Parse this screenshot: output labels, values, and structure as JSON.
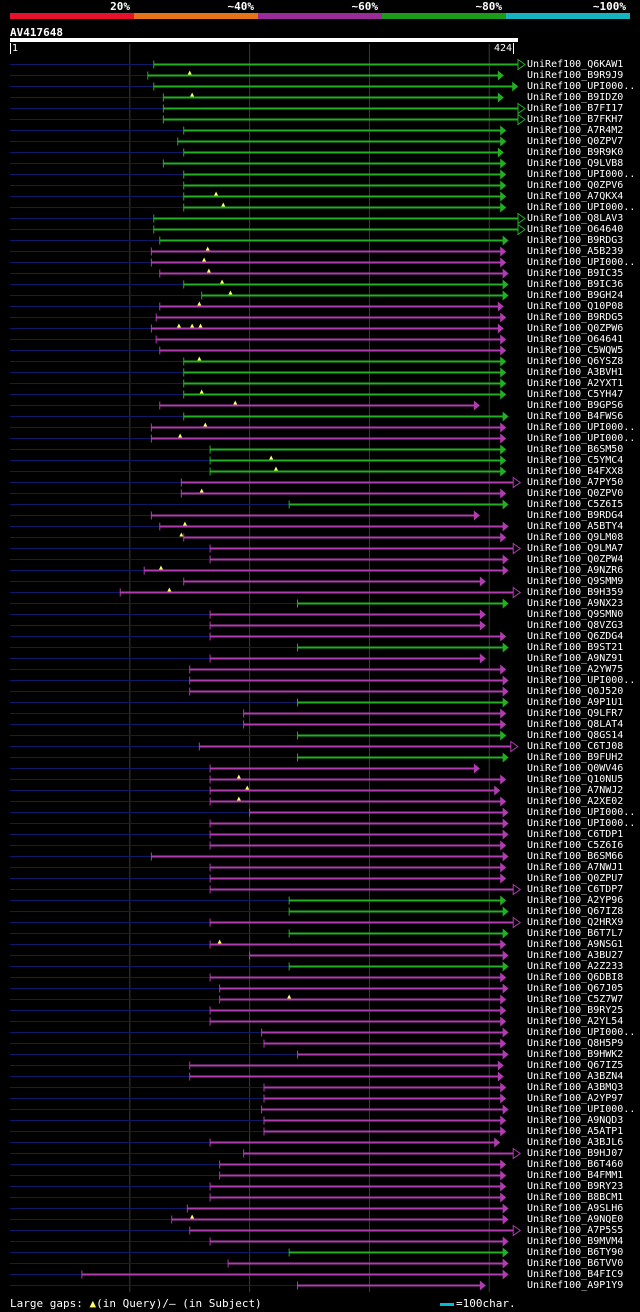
{
  "legend": {
    "items": [
      {
        "label": "20%",
        "color": "#e8102a"
      },
      {
        "label": "~40%",
        "color": "#e8741a"
      },
      {
        "label": "~60%",
        "color": "#9a2c9a"
      },
      {
        "label": "~80%",
        "color": "#1c9a1c"
      },
      {
        "label": "~100%",
        "color": "#16b4c0"
      }
    ]
  },
  "query": {
    "name": "AV417648",
    "start": "1",
    "end": "424",
    "length": 424
  },
  "colors": {
    "purple": "#b03cb0",
    "green": "#22b022",
    "unaligned": "#0e1a66",
    "gap": "#ffff66"
  },
  "hits": [
    {
      "label": "UniRef100_Q6KAW1",
      "s": 120,
      "e": 424,
      "c": "g",
      "arrow": true,
      "gaps": []
    },
    {
      "label": "UniRef100_B9R9J9",
      "s": 115,
      "e": 408,
      "c": "g",
      "arrow": false,
      "gaps": [
        150
      ]
    },
    {
      "label": "UniRef100_UPI000..",
      "s": 120,
      "e": 420,
      "c": "g",
      "arrow": false,
      "gaps": []
    },
    {
      "label": "UniRef100_B9IDZ0",
      "s": 128,
      "e": 408,
      "c": "g",
      "arrow": false,
      "gaps": [
        152
      ]
    },
    {
      "label": "UniRef100_B7FI17",
      "s": 128,
      "e": 424,
      "c": "g",
      "arrow": true,
      "gaps": []
    },
    {
      "label": "UniRef100_B7FKH7",
      "s": 128,
      "e": 424,
      "c": "g",
      "arrow": true,
      "gaps": []
    },
    {
      "label": "UniRef100_A7R4M2",
      "s": 145,
      "e": 410,
      "c": "g",
      "arrow": false,
      "gaps": []
    },
    {
      "label": "UniRef100_Q0ZPV7",
      "s": 140,
      "e": 410,
      "c": "g",
      "arrow": false,
      "gaps": []
    },
    {
      "label": "UniRef100_B9R9K0",
      "s": 145,
      "e": 408,
      "c": "g",
      "arrow": false,
      "gaps": []
    },
    {
      "label": "UniRef100_Q9LVB8",
      "s": 128,
      "e": 410,
      "c": "g",
      "arrow": false,
      "gaps": []
    },
    {
      "label": "UniRef100_UPI000..",
      "s": 145,
      "e": 410,
      "c": "g",
      "arrow": false,
      "gaps": []
    },
    {
      "label": "UniRef100_Q0ZPV6",
      "s": 145,
      "e": 410,
      "c": "g",
      "arrow": false,
      "gaps": []
    },
    {
      "label": "UniRef100_A7QKX4",
      "s": 145,
      "e": 410,
      "c": "g",
      "arrow": false,
      "gaps": [
        172
      ]
    },
    {
      "label": "UniRef100_UPI000..",
      "s": 145,
      "e": 410,
      "c": "g",
      "arrow": false,
      "gaps": [
        178
      ]
    },
    {
      "label": "UniRef100_Q8LAV3",
      "s": 120,
      "e": 424,
      "c": "g",
      "arrow": true,
      "gaps": []
    },
    {
      "label": "UniRef100_O64640",
      "s": 120,
      "e": 424,
      "c": "g",
      "arrow": true,
      "gaps": []
    },
    {
      "label": "UniRef100_B9RDG3",
      "s": 125,
      "e": 412,
      "c": "g",
      "arrow": false,
      "gaps": []
    },
    {
      "label": "UniRef100_A5B239",
      "s": 118,
      "e": 410,
      "c": "p",
      "arrow": false,
      "gaps": [
        165
      ]
    },
    {
      "label": "UniRef100_UPI000..",
      "s": 118,
      "e": 410,
      "c": "p",
      "arrow": false,
      "gaps": [
        162
      ]
    },
    {
      "label": "UniRef100_B9IC35",
      "s": 125,
      "e": 412,
      "c": "p",
      "arrow": false,
      "gaps": [
        166
      ]
    },
    {
      "label": "UniRef100_B9IC36",
      "s": 145,
      "e": 412,
      "c": "g",
      "arrow": false,
      "gaps": [
        177
      ]
    },
    {
      "label": "UniRef100_B9GH24",
      "s": 160,
      "e": 412,
      "c": "g",
      "arrow": false,
      "gaps": [
        184
      ]
    },
    {
      "label": "UniRef100_Q10P08",
      "s": 125,
      "e": 408,
      "c": "p",
      "arrow": false,
      "gaps": [
        158
      ]
    },
    {
      "label": "UniRef100_B9RDG5",
      "s": 122,
      "e": 410,
      "c": "p",
      "arrow": false,
      "gaps": []
    },
    {
      "label": "UniRef100_Q0ZPW6",
      "s": 118,
      "e": 408,
      "c": "p",
      "arrow": false,
      "gaps": [
        141,
        152,
        159
      ]
    },
    {
      "label": "UniRef100_O64641",
      "s": 122,
      "e": 410,
      "c": "p",
      "arrow": false,
      "gaps": []
    },
    {
      "label": "UniRef100_C5WQW5",
      "s": 125,
      "e": 410,
      "c": "p",
      "arrow": false,
      "gaps": []
    },
    {
      "label": "UniRef100_Q6YSZ8",
      "s": 145,
      "e": 410,
      "c": "g",
      "arrow": false,
      "gaps": [
        158
      ]
    },
    {
      "label": "UniRef100_A3BVH1",
      "s": 145,
      "e": 410,
      "c": "g",
      "arrow": false,
      "gaps": []
    },
    {
      "label": "UniRef100_A2YXT1",
      "s": 145,
      "e": 410,
      "c": "g",
      "arrow": false,
      "gaps": []
    },
    {
      "label": "UniRef100_C5YH47",
      "s": 145,
      "e": 410,
      "c": "g",
      "arrow": false,
      "gaps": [
        160
      ]
    },
    {
      "label": "UniRef100_B9GPS6",
      "s": 125,
      "e": 388,
      "c": "p",
      "arrow": false,
      "gaps": [
        188
      ]
    },
    {
      "label": "UniRef100_B4FWS6",
      "s": 145,
      "e": 412,
      "c": "g",
      "arrow": false,
      "gaps": []
    },
    {
      "label": "UniRef100_UPI000..",
      "s": 118,
      "e": 410,
      "c": "p",
      "arrow": false,
      "gaps": [
        163
      ]
    },
    {
      "label": "UniRef100_UPI000..",
      "s": 118,
      "e": 410,
      "c": "p",
      "arrow": false,
      "gaps": [
        142
      ]
    },
    {
      "label": "UniRef100_B6SM50",
      "s": 167,
      "e": 410,
      "c": "g",
      "arrow": false,
      "gaps": []
    },
    {
      "label": "UniRef100_C5YMC4",
      "s": 167,
      "e": 410,
      "c": "g",
      "arrow": false,
      "gaps": [
        218
      ]
    },
    {
      "label": "UniRef100_B4FXX8",
      "s": 167,
      "e": 410,
      "c": "g",
      "arrow": false,
      "gaps": [
        222
      ]
    },
    {
      "label": "UniRef100_A7PY50",
      "s": 143,
      "e": 420,
      "c": "p",
      "arrow": true,
      "gaps": []
    },
    {
      "label": "UniRef100_Q0ZPV0",
      "s": 143,
      "e": 410,
      "c": "p",
      "arrow": false,
      "gaps": [
        160
      ]
    },
    {
      "label": "UniRef100_C5Z6I5",
      "s": 233,
      "e": 412,
      "c": "g",
      "arrow": false,
      "gaps": []
    },
    {
      "label": "UniRef100_B9RDG4",
      "s": 118,
      "e": 388,
      "c": "p",
      "arrow": false,
      "gaps": []
    },
    {
      "label": "UniRef100_A5BTY4",
      "s": 125,
      "e": 412,
      "c": "p",
      "arrow": false,
      "gaps": [
        146
      ]
    },
    {
      "label": "UniRef100_Q9LM08",
      "s": 145,
      "e": 410,
      "c": "p",
      "arrow": false,
      "gaps": [
        143
      ]
    },
    {
      "label": "UniRef100_Q9LMA7",
      "s": 167,
      "e": 420,
      "c": "p",
      "arrow": true,
      "gaps": []
    },
    {
      "label": "UniRef100_Q0ZPW4",
      "s": 167,
      "e": 412,
      "c": "p",
      "arrow": false,
      "gaps": []
    },
    {
      "label": "UniRef100_A9NZR6",
      "s": 112,
      "e": 412,
      "c": "p",
      "arrow": false,
      "gaps": [
        126
      ]
    },
    {
      "label": "UniRef100_Q9SMM9",
      "s": 145,
      "e": 393,
      "c": "p",
      "arrow": false,
      "gaps": []
    },
    {
      "label": "UniRef100_B9H359",
      "s": 92,
      "e": 420,
      "c": "p",
      "arrow": true,
      "gaps": [
        133
      ]
    },
    {
      "label": "UniRef100_A9NX23",
      "s": 240,
      "e": 412,
      "c": "g",
      "arrow": false,
      "gaps": []
    },
    {
      "label": "UniRef100_Q9SMN0",
      "s": 167,
      "e": 393,
      "c": "p",
      "arrow": false,
      "gaps": []
    },
    {
      "label": "UniRef100_Q8VZG3",
      "s": 167,
      "e": 393,
      "c": "p",
      "arrow": false,
      "gaps": []
    },
    {
      "label": "UniRef100_Q6ZDG4",
      "s": 167,
      "e": 410,
      "c": "p",
      "arrow": false,
      "gaps": []
    },
    {
      "label": "UniRef100_B9ST21",
      "s": 240,
      "e": 412,
      "c": "g",
      "arrow": false,
      "gaps": []
    },
    {
      "label": "UniRef100_A9NZ91",
      "s": 167,
      "e": 393,
      "c": "p",
      "arrow": false,
      "gaps": []
    },
    {
      "label": "UniRef100_A2YW75",
      "s": 150,
      "e": 410,
      "c": "p",
      "arrow": false,
      "gaps": []
    },
    {
      "label": "UniRef100_UPI000..",
      "s": 150,
      "e": 412,
      "c": "p",
      "arrow": false,
      "gaps": []
    },
    {
      "label": "UniRef100_Q0J520",
      "s": 150,
      "e": 412,
      "c": "p",
      "arrow": false,
      "gaps": []
    },
    {
      "label": "UniRef100_A9P1U1",
      "s": 240,
      "e": 412,
      "c": "g",
      "arrow": false,
      "gaps": []
    },
    {
      "label": "UniRef100_Q9LFR7",
      "s": 195,
      "e": 410,
      "c": "p",
      "arrow": false,
      "gaps": []
    },
    {
      "label": "UniRef100_Q8LAT4",
      "s": 195,
      "e": 410,
      "c": "p",
      "arrow": false,
      "gaps": []
    },
    {
      "label": "UniRef100_Q8GS14",
      "s": 240,
      "e": 410,
      "c": "g",
      "arrow": false,
      "gaps": []
    },
    {
      "label": "UniRef100_C6TJ08",
      "s": 158,
      "e": 418,
      "c": "p",
      "arrow": true,
      "gaps": []
    },
    {
      "label": "UniRef100_B9FUH2",
      "s": 240,
      "e": 412,
      "c": "g",
      "arrow": false,
      "gaps": []
    },
    {
      "label": "UniRef100_Q0WV46",
      "s": 167,
      "e": 388,
      "c": "p",
      "arrow": false,
      "gaps": []
    },
    {
      "label": "UniRef100_Q10NU5",
      "s": 167,
      "e": 410,
      "c": "p",
      "arrow": false,
      "gaps": [
        191
      ]
    },
    {
      "label": "UniRef100_A7NWJ2",
      "s": 167,
      "e": 405,
      "c": "p",
      "arrow": false,
      "gaps": [
        198
      ]
    },
    {
      "label": "UniRef100_A2XE02",
      "s": 167,
      "e": 410,
      "c": "p",
      "arrow": false,
      "gaps": [
        191
      ]
    },
    {
      "label": "UniRef100_UPI000..",
      "s": 200,
      "e": 412,
      "c": "p",
      "arrow": false,
      "gaps": []
    },
    {
      "label": "UniRef100_UPI000..",
      "s": 167,
      "e": 412,
      "c": "p",
      "arrow": false,
      "gaps": []
    },
    {
      "label": "UniRef100_C6TDP1",
      "s": 167,
      "e": 412,
      "c": "p",
      "arrow": false,
      "gaps": []
    },
    {
      "label": "UniRef100_C5Z6I6",
      "s": 167,
      "e": 410,
      "c": "p",
      "arrow": false,
      "gaps": []
    },
    {
      "label": "UniRef100_B6SM66",
      "s": 118,
      "e": 412,
      "c": "p",
      "arrow": false,
      "gaps": []
    },
    {
      "label": "UniRef100_A7NWJ1",
      "s": 167,
      "e": 410,
      "c": "p",
      "arrow": false,
      "gaps": []
    },
    {
      "label": "UniRef100_Q0ZPU7",
      "s": 167,
      "e": 410,
      "c": "p",
      "arrow": false,
      "gaps": []
    },
    {
      "label": "UniRef100_C6TDP7",
      "s": 167,
      "e": 420,
      "c": "p",
      "arrow": true,
      "gaps": []
    },
    {
      "label": "UniRef100_A2YP96",
      "s": 233,
      "e": 410,
      "c": "g",
      "arrow": false,
      "gaps": []
    },
    {
      "label": "UniRef100_Q67IZ8",
      "s": 233,
      "e": 412,
      "c": "g",
      "arrow": false,
      "gaps": []
    },
    {
      "label": "UniRef100_Q2HRX9",
      "s": 167,
      "e": 420,
      "c": "p",
      "arrow": true,
      "gaps": []
    },
    {
      "label": "UniRef100_B6T7L7",
      "s": 233,
      "e": 412,
      "c": "g",
      "arrow": false,
      "gaps": []
    },
    {
      "label": "UniRef100_A9NSG1",
      "s": 167,
      "e": 410,
      "c": "p",
      "arrow": false,
      "gaps": [
        175
      ]
    },
    {
      "label": "UniRef100_A3BU27",
      "s": 200,
      "e": 412,
      "c": "p",
      "arrow": false,
      "gaps": []
    },
    {
      "label": "UniRef100_A2Z233",
      "s": 233,
      "e": 412,
      "c": "g",
      "arrow": false,
      "gaps": []
    },
    {
      "label": "UniRef100_Q6DBI8",
      "s": 167,
      "e": 410,
      "c": "p",
      "arrow": false,
      "gaps": []
    },
    {
      "label": "UniRef100_Q67J05",
      "s": 175,
      "e": 412,
      "c": "p",
      "arrow": false,
      "gaps": []
    },
    {
      "label": "UniRef100_C5Z7W7",
      "s": 175,
      "e": 410,
      "c": "p",
      "arrow": false,
      "gaps": [
        233
      ]
    },
    {
      "label": "UniRef100_B9RY25",
      "s": 167,
      "e": 410,
      "c": "p",
      "arrow": false,
      "gaps": []
    },
    {
      "label": "UniRef100_A2YL54",
      "s": 167,
      "e": 410,
      "c": "p",
      "arrow": false,
      "gaps": []
    },
    {
      "label": "UniRef100_UPI000..",
      "s": 210,
      "e": 412,
      "c": "p",
      "arrow": false,
      "gaps": []
    },
    {
      "label": "UniRef100_Q8H5P9",
      "s": 212,
      "e": 410,
      "c": "p",
      "arrow": false,
      "gaps": []
    },
    {
      "label": "UniRef100_B9HWK2",
      "s": 240,
      "e": 412,
      "c": "p",
      "arrow": false,
      "gaps": []
    },
    {
      "label": "UniRef100_Q67IZ5",
      "s": 150,
      "e": 408,
      "c": "p",
      "arrow": false,
      "gaps": []
    },
    {
      "label": "UniRef100_A3BZN4",
      "s": 150,
      "e": 408,
      "c": "p",
      "arrow": false,
      "gaps": []
    },
    {
      "label": "UniRef100_A3BMQ3",
      "s": 212,
      "e": 410,
      "c": "p",
      "arrow": false,
      "gaps": []
    },
    {
      "label": "UniRef100_A2YP97",
      "s": 212,
      "e": 410,
      "c": "p",
      "arrow": false,
      "gaps": []
    },
    {
      "label": "UniRef100_UPI000..",
      "s": 210,
      "e": 412,
      "c": "p",
      "arrow": false,
      "gaps": []
    },
    {
      "label": "UniRef100_A9NQD3",
      "s": 212,
      "e": 410,
      "c": "p",
      "arrow": false,
      "gaps": []
    },
    {
      "label": "UniRef100_A5ATP1",
      "s": 212,
      "e": 410,
      "c": "p",
      "arrow": false,
      "gaps": []
    },
    {
      "label": "UniRef100_A3BJL6",
      "s": 167,
      "e": 405,
      "c": "p",
      "arrow": false,
      "gaps": []
    },
    {
      "label": "UniRef100_B9HJ07",
      "s": 195,
      "e": 420,
      "c": "p",
      "arrow": true,
      "gaps": []
    },
    {
      "label": "UniRef100_B6T460",
      "s": 175,
      "e": 410,
      "c": "p",
      "arrow": false,
      "gaps": []
    },
    {
      "label": "UniRef100_B4FMM1",
      "s": 175,
      "e": 410,
      "c": "p",
      "arrow": false,
      "gaps": []
    },
    {
      "label": "UniRef100_B9RY23",
      "s": 167,
      "e": 410,
      "c": "p",
      "arrow": false,
      "gaps": []
    },
    {
      "label": "UniRef100_B8BCM1",
      "s": 167,
      "e": 410,
      "c": "p",
      "arrow": false,
      "gaps": []
    },
    {
      "label": "UniRef100_A9SLH6",
      "s": 148,
      "e": 412,
      "c": "p",
      "arrow": false,
      "gaps": []
    },
    {
      "label": "UniRef100_A9NQE0",
      "s": 135,
      "e": 412,
      "c": "p",
      "arrow": false,
      "gaps": [
        152
      ]
    },
    {
      "label": "UniRef100_A7P5S5",
      "s": 150,
      "e": 420,
      "c": "p",
      "arrow": true,
      "gaps": []
    },
    {
      "label": "UniRef100_B9MVM4",
      "s": 167,
      "e": 412,
      "c": "p",
      "arrow": false,
      "gaps": []
    },
    {
      "label": "UniRef100_B6TY90",
      "s": 233,
      "e": 412,
      "c": "g",
      "arrow": false,
      "gaps": []
    },
    {
      "label": "UniRef100_B6TVV0",
      "s": 182,
      "e": 412,
      "c": "p",
      "arrow": false,
      "gaps": []
    },
    {
      "label": "UniRef100_B4FIC9",
      "s": 60,
      "e": 412,
      "c": "p",
      "arrow": false,
      "gaps": []
    },
    {
      "label": "UniRef100_A9P1Y9",
      "s": 240,
      "e": 393,
      "c": "p",
      "arrow": false,
      "gaps": []
    }
  ],
  "footer": {
    "prefix": "Large gaps: ",
    "query_note": "(in Query)/",
    "subject_note": "– (in Subject)",
    "scale_label": "=100char."
  }
}
